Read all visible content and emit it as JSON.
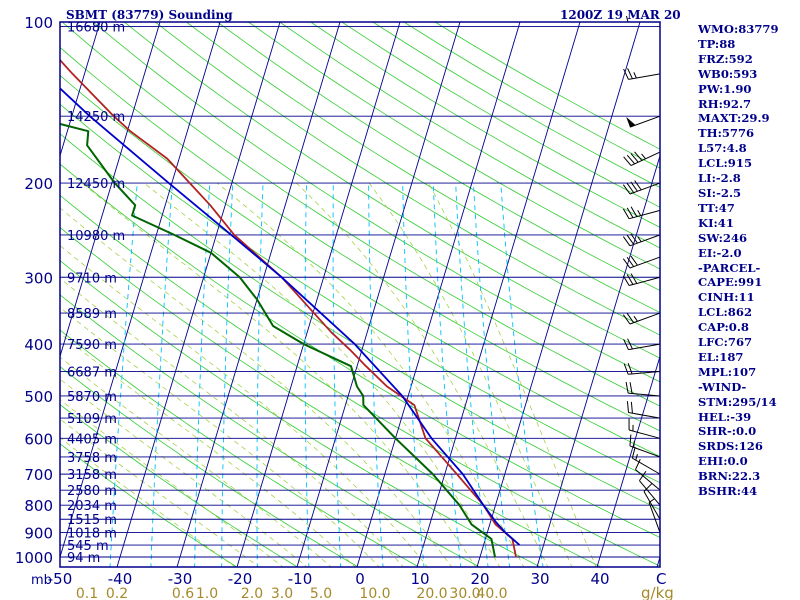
{
  "header": {
    "title": "SBMT (83779) Sounding",
    "time": "1200Z 19 MAR 20"
  },
  "indices": [
    "WMO:83779",
    "TP:88",
    "FRZ:592",
    "WB0:593",
    "PW:1.90",
    "RH:92.7",
    "MAXT:29.9",
    "TH:5776",
    "L57:4.8",
    "LCL:915",
    "LI:-2.8",
    "SI:-2.5",
    "TT:47",
    "KI:41",
    "SW:246",
    "EI:-2.0",
    "-PARCEL-",
    "CAPE:991",
    "CINH:11",
    "LCL:862",
    "CAP:0.8",
    "LFC:767",
    "EL:187",
    "MPL:107",
    "-WIND-",
    "STM:295/14",
    "HEL:-39",
    "SHR-:0.0",
    "SRDS:126",
    "EHI:0.0",
    "BRN:22.3",
    "BSHR:44"
  ],
  "colors": {
    "frame": "#00008b",
    "temperature": "#b22222",
    "dewpoint": "#006400",
    "parcel": "#0000cd",
    "dry_adiabats": "#32cd32",
    "moist_adiabats": "#9acd32",
    "mixing_ratio": "#00bfff",
    "wind": "#000000"
  },
  "chart_data": {
    "type": "line",
    "title": "SBMT (83779) Sounding",
    "xlabel": "",
    "ylabel": "mb",
    "x_unit_label": "C",
    "mixing_ratio_unit_label": "g/kg",
    "xlim": [
      -50,
      50
    ],
    "ylim": [
      1000,
      100
    ],
    "y_scale": "log",
    "pressure_ticks": [
      100,
      200,
      300,
      400,
      500,
      600,
      700,
      800,
      900,
      1000
    ],
    "temperature_ticks": [
      -50,
      -40,
      -30,
      -20,
      -10,
      0,
      10,
      20,
      30,
      40
    ],
    "temperature_tick_labels": [
      "-50",
      "-40",
      "-30",
      "-20",
      "-10",
      "0",
      "10",
      "20",
      "30",
      "40"
    ],
    "mixing_ratio_labels": [
      {
        "label": "0.1",
        "t": -45.5
      },
      {
        "label": "0.2",
        "t": -40.5
      },
      {
        "label": "0.6",
        "t": -29.5
      },
      {
        "label": "1.0",
        "t": -25.5
      },
      {
        "label": "2.0",
        "t": -18
      },
      {
        "label": "3.0",
        "t": -13
      },
      {
        "label": "5.0",
        "t": -6.5
      },
      {
        "label": "10.0",
        "t": 2.5
      },
      {
        "label": "20.0",
        "t": 12
      },
      {
        "label": "30.0",
        "t": 17.5
      },
      {
        "label": "40.0",
        "t": 22
      }
    ],
    "mixing_ratio_line_values": [
      0.1,
      0.2,
      0.4,
      0.6,
      1,
      2,
      3,
      5,
      8,
      12,
      16,
      20,
      28
    ],
    "heights": [
      {
        "p": 102,
        "label": "16680 m"
      },
      {
        "p": 150,
        "label": "14250 m"
      },
      {
        "p": 200,
        "label": "12450 m"
      },
      {
        "p": 250,
        "label": "10980 m"
      },
      {
        "p": 300,
        "label": "9710 m"
      },
      {
        "p": 350,
        "label": "8589 m"
      },
      {
        "p": 400,
        "label": "7590 m"
      },
      {
        "p": 450,
        "label": "6687 m"
      },
      {
        "p": 500,
        "label": "5870 m"
      },
      {
        "p": 550,
        "label": "5109 m"
      },
      {
        "p": 600,
        "label": "4405 m"
      },
      {
        "p": 650,
        "label": "3758 m"
      },
      {
        "p": 700,
        "label": "3158 m"
      },
      {
        "p": 750,
        "label": "2580 m"
      },
      {
        "p": 800,
        "label": "2034 m"
      },
      {
        "p": 850,
        "label": "1515 m"
      },
      {
        "p": 900,
        "label": "1018 m"
      },
      {
        "p": 950,
        "label": "545 m"
      },
      {
        "p": 1000,
        "label": "94 m"
      }
    ],
    "series": [
      {
        "key": "temperature",
        "points": [
          [
            1000,
            26.0
          ],
          [
            925,
            24.5
          ],
          [
            870,
            21.0
          ],
          [
            800,
            18.0
          ],
          [
            700,
            12.0
          ],
          [
            600,
            5.0
          ],
          [
            520,
            1.5
          ],
          [
            480,
            -4.0
          ],
          [
            440,
            -8.5
          ],
          [
            410,
            -12.0
          ],
          [
            380,
            -16.0
          ],
          [
            300,
            -27.0
          ],
          [
            250,
            -37.0
          ],
          [
            220,
            -42.5
          ],
          [
            200,
            -47.0
          ],
          [
            180,
            -52.0
          ],
          [
            160,
            -59.5
          ],
          [
            150,
            -63.0
          ],
          [
            125,
            -72.0
          ],
          [
            110,
            -78.0
          ],
          [
            100,
            -82.0
          ]
        ]
      },
      {
        "key": "dewpoint",
        "points": [
          [
            1000,
            22.5
          ],
          [
            925,
            21.0
          ],
          [
            870,
            17.0
          ],
          [
            800,
            14.0
          ],
          [
            700,
            8.0
          ],
          [
            600,
            0.0
          ],
          [
            520,
            -7.0
          ],
          [
            500,
            -7.5
          ],
          [
            480,
            -9.0
          ],
          [
            440,
            -11.0
          ],
          [
            400,
            -20.0
          ],
          [
            370,
            -26.0
          ],
          [
            330,
            -30.0
          ],
          [
            300,
            -34.0
          ],
          [
            270,
            -40.0
          ],
          [
            250,
            -47.0
          ],
          [
            230,
            -55.0
          ],
          [
            220,
            -55.0
          ],
          [
            200,
            -59.5
          ],
          [
            170,
            -66.0
          ],
          [
            160,
            -66.5
          ],
          [
            150,
            -77.0
          ],
          [
            100,
            -100.0
          ]
        ]
      },
      {
        "key": "parcel",
        "points": [
          [
            950,
            26.0
          ],
          [
            900,
            23.0
          ],
          [
            862,
            21.0
          ],
          [
            800,
            18.0
          ],
          [
            700,
            13.0
          ],
          [
            600,
            6.0
          ],
          [
            500,
            -1.0
          ],
          [
            400,
            -11.5
          ],
          [
            300,
            -27.0
          ],
          [
            250,
            -37.5
          ],
          [
            200,
            -50.5
          ],
          [
            150,
            -67.0
          ],
          [
            100,
            -88.5
          ]
        ]
      }
    ],
    "wind_barbs": [
      {
        "p": 100,
        "dir": 270,
        "kt": 5
      },
      {
        "p": 125,
        "dir": 260,
        "kt": 25
      },
      {
        "p": 150,
        "dir": 250,
        "kt": 50
      },
      {
        "p": 175,
        "dir": 245,
        "kt": 45
      },
      {
        "p": 200,
        "dir": 250,
        "kt": 40
      },
      {
        "p": 225,
        "dir": 255,
        "kt": 35
      },
      {
        "p": 250,
        "dir": 250,
        "kt": 35
      },
      {
        "p": 275,
        "dir": 250,
        "kt": 30
      },
      {
        "p": 300,
        "dir": 255,
        "kt": 30
      },
      {
        "p": 350,
        "dir": 250,
        "kt": 25
      },
      {
        "p": 400,
        "dir": 260,
        "kt": 20
      },
      {
        "p": 450,
        "dir": 265,
        "kt": 20
      },
      {
        "p": 500,
        "dir": 275,
        "kt": 20
      },
      {
        "p": 550,
        "dir": 280,
        "kt": 20
      },
      {
        "p": 600,
        "dir": 285,
        "kt": 15
      },
      {
        "p": 650,
        "dir": 290,
        "kt": 15
      },
      {
        "p": 700,
        "dir": 300,
        "kt": 15
      },
      {
        "p": 750,
        "dir": 310,
        "kt": 10
      },
      {
        "p": 800,
        "dir": 320,
        "kt": 10
      },
      {
        "p": 850,
        "dir": 330,
        "kt": 10
      },
      {
        "p": 900,
        "dir": 340,
        "kt": 5
      }
    ]
  }
}
